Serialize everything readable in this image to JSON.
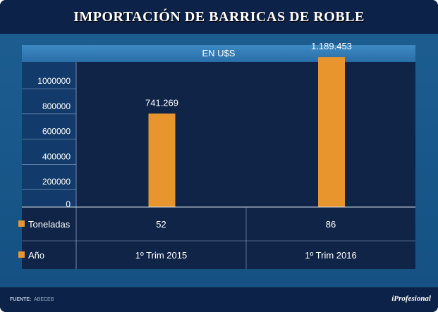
{
  "title": "IMPORTACIÓN DE BARRICAS DE ROBLE",
  "footer": {
    "source_label": "FUENTE:",
    "source_value": "ABECEB",
    "brand": "iProfesional"
  },
  "colors": {
    "bar": "#e8952e",
    "panel": "#0f2447",
    "header": "#0d2248",
    "accent": "#2a6ea8"
  },
  "chart_data": {
    "type": "bar",
    "subtitle": "EN U$S",
    "categories": [
      "1º Trim 2015",
      "1º Trim 2016"
    ],
    "values": [
      741269,
      1189453
    ],
    "value_labels": [
      "741.269",
      "1.189.453"
    ],
    "yticks": [
      "0",
      "200000",
      "400000",
      "600000",
      "800000",
      "1000000"
    ],
    "ylim": [
      0,
      1200000
    ],
    "table": {
      "rows": [
        {
          "label": "Toneladas",
          "values": [
            "52",
            "86"
          ]
        },
        {
          "label": "Año",
          "values": [
            "1º Trim 2015",
            "1º Trim 2016"
          ]
        }
      ]
    },
    "grid": false
  }
}
